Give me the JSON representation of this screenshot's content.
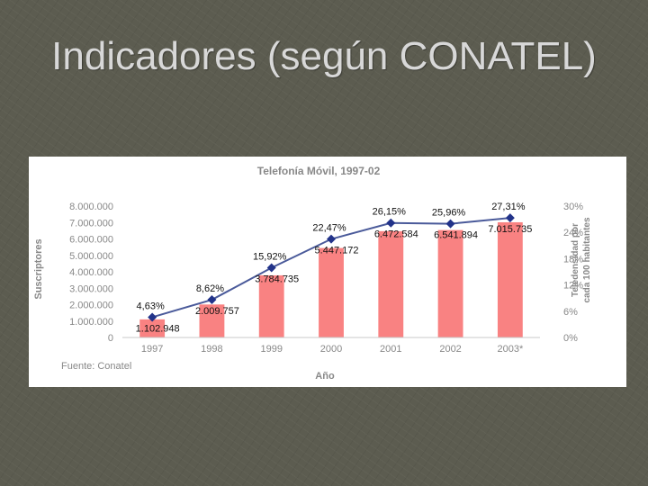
{
  "slide": {
    "title": "Indicadores (según CONATEL)"
  },
  "chart_data": {
    "type": "bar",
    "title": "Telefonía Móvil, 1997-02",
    "xlabel": "Año",
    "ylabel": "Suscriptores",
    "y2label_line1": "Teledensidad por",
    "y2label_line2": "cada 100 habitantes",
    "source": "Fuente: Conatel",
    "categories": [
      "1997",
      "1998",
      "1999",
      "2000",
      "2001",
      "2002",
      "2003*"
    ],
    "ylim": [
      0,
      8000000
    ],
    "yticks": [
      "0",
      "1.000.000",
      "2.000.000",
      "3.000.000",
      "4.000.000",
      "5.000.000",
      "6.000.000",
      "7.000.000",
      "8.000.000"
    ],
    "y2lim": [
      0,
      30
    ],
    "y2ticks": [
      "0%",
      "6%",
      "12%",
      "18%",
      "24%",
      "30%"
    ],
    "grid": false,
    "series": [
      {
        "kind": "bar",
        "color": "#f98282",
        "values": [
          1102948,
          2009757,
          3784735,
          5447172,
          6472584,
          6541894,
          7015735
        ],
        "labels": [
          "1.102.948",
          "2.009.757",
          "3.784.735",
          "5.447.172",
          "6.472.584",
          "6.541.894",
          "7.015.735"
        ]
      },
      {
        "kind": "line",
        "axis": "right",
        "color": "#4a5a9a",
        "marker_color": "#22338a",
        "values": [
          4.63,
          8.62,
          15.92,
          22.47,
          26.15,
          25.96,
          27.31
        ],
        "labels": [
          "4,63%",
          "8,62%",
          "15,92%",
          "22,47%",
          "26,15%",
          "25,96%",
          "27,31%"
        ]
      }
    ]
  }
}
